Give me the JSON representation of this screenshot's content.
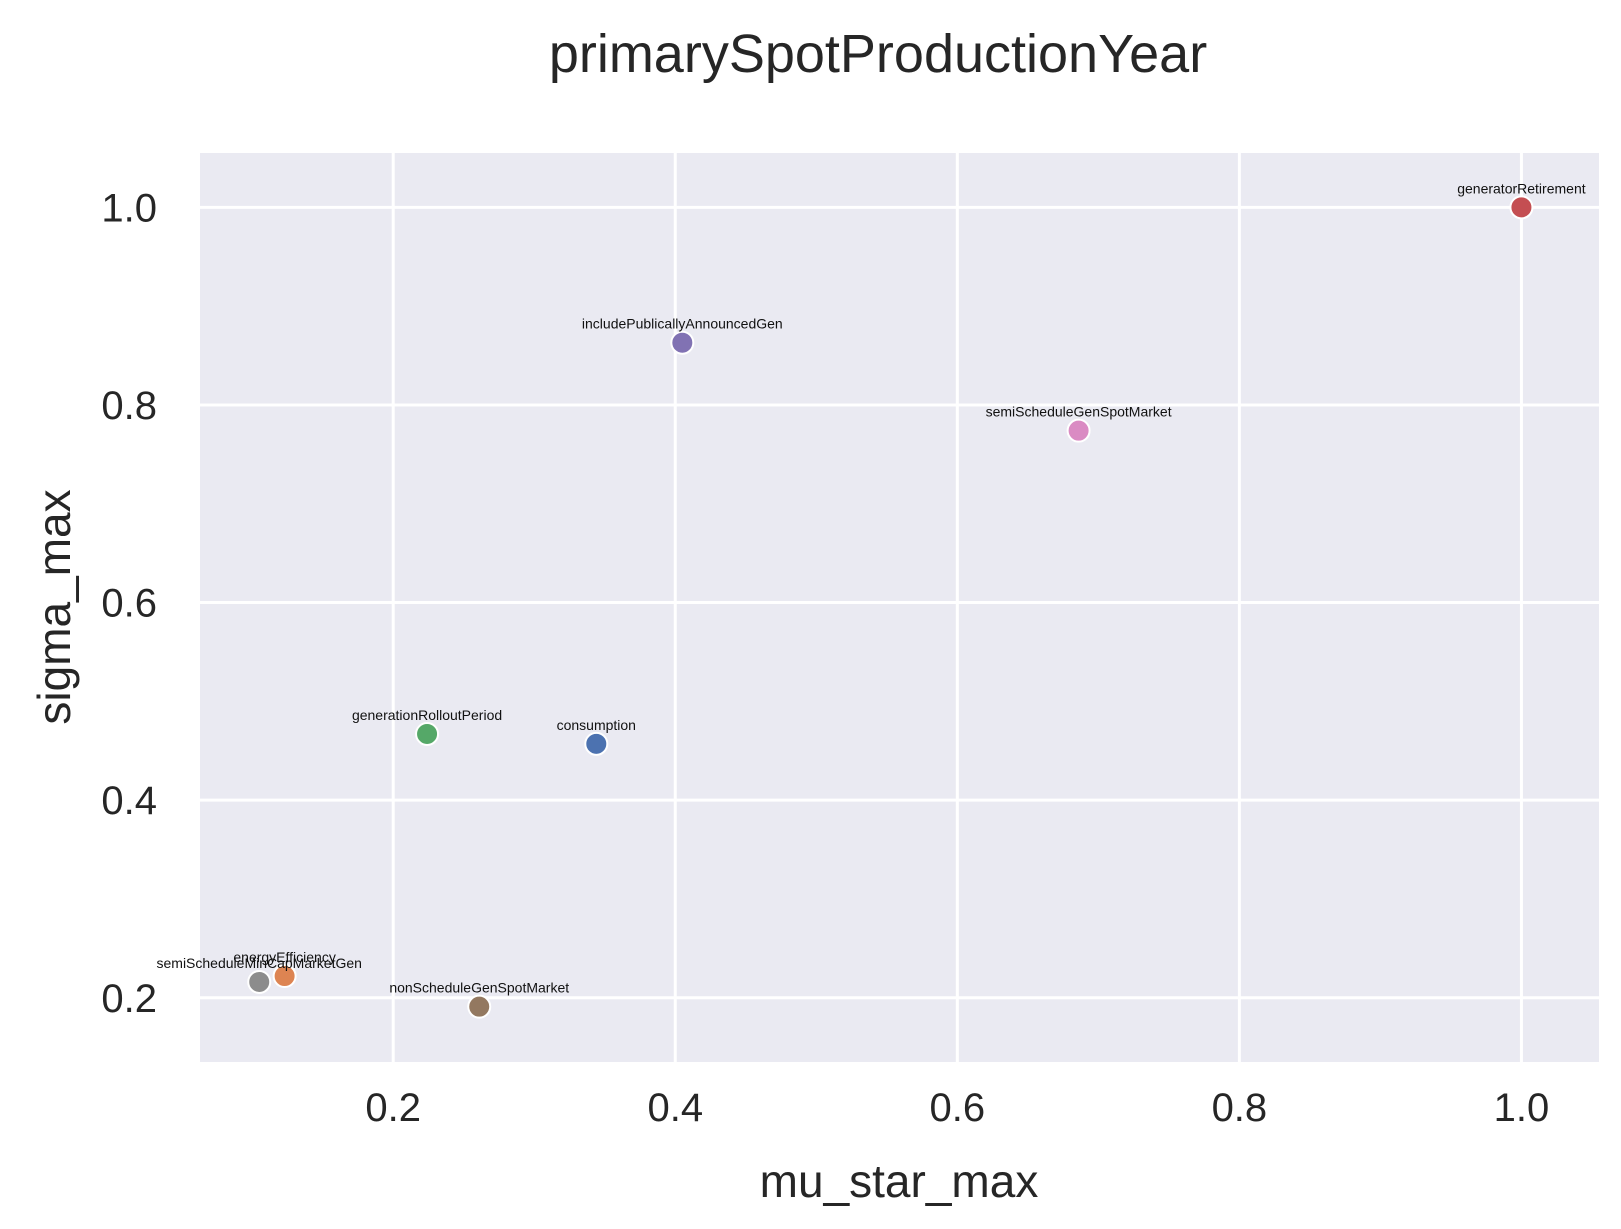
{
  "chart_data": {
    "type": "scatter",
    "title": "primarySpotProductionYear",
    "xlabel": "mu_star_max",
    "ylabel": "sigma_max",
    "xlim": [
      0.063,
      1.055
    ],
    "ylim": [
      0.135,
      1.055
    ],
    "xticks": [
      {
        "value": 0.2,
        "label": "0.2"
      },
      {
        "value": 0.4,
        "label": "0.4"
      },
      {
        "value": 0.6,
        "label": "0.6"
      },
      {
        "value": 0.8,
        "label": "0.8"
      },
      {
        "value": 1.0,
        "label": "1.0"
      }
    ],
    "yticks": [
      {
        "value": 0.2,
        "label": "0.2"
      },
      {
        "value": 0.4,
        "label": "0.4"
      },
      {
        "value": 0.6,
        "label": "0.6"
      },
      {
        "value": 0.8,
        "label": "0.8"
      },
      {
        "value": 1.0,
        "label": "1.0"
      }
    ],
    "grid": true,
    "background": "#eaeaf2",
    "grid_color": "#ffffff",
    "points": [
      {
        "label": "consumption",
        "x": 0.344,
        "y": 0.457,
        "color": "#4c72b0"
      },
      {
        "label": "energyEfficiency",
        "x": 0.123,
        "y": 0.222,
        "color": "#dd8452"
      },
      {
        "label": "generationRolloutPeriod",
        "x": 0.224,
        "y": 0.467,
        "color": "#55a868"
      },
      {
        "label": "generatorRetirement",
        "x": 1.0,
        "y": 1.0,
        "color": "#c44e52"
      },
      {
        "label": "includePublicallyAnnouncedGen",
        "x": 0.405,
        "y": 0.863,
        "color": "#8172b3"
      },
      {
        "label": "nonScheduleGenSpotMarket",
        "x": 0.261,
        "y": 0.191,
        "color": "#937860"
      },
      {
        "label": "semiScheduleGenSpotMarket",
        "x": 0.686,
        "y": 0.774,
        "color": "#da8bc3"
      },
      {
        "label": "semiScheduleMinCapMarketGen",
        "x": 0.105,
        "y": 0.216,
        "color": "#8c8c8c"
      }
    ]
  }
}
